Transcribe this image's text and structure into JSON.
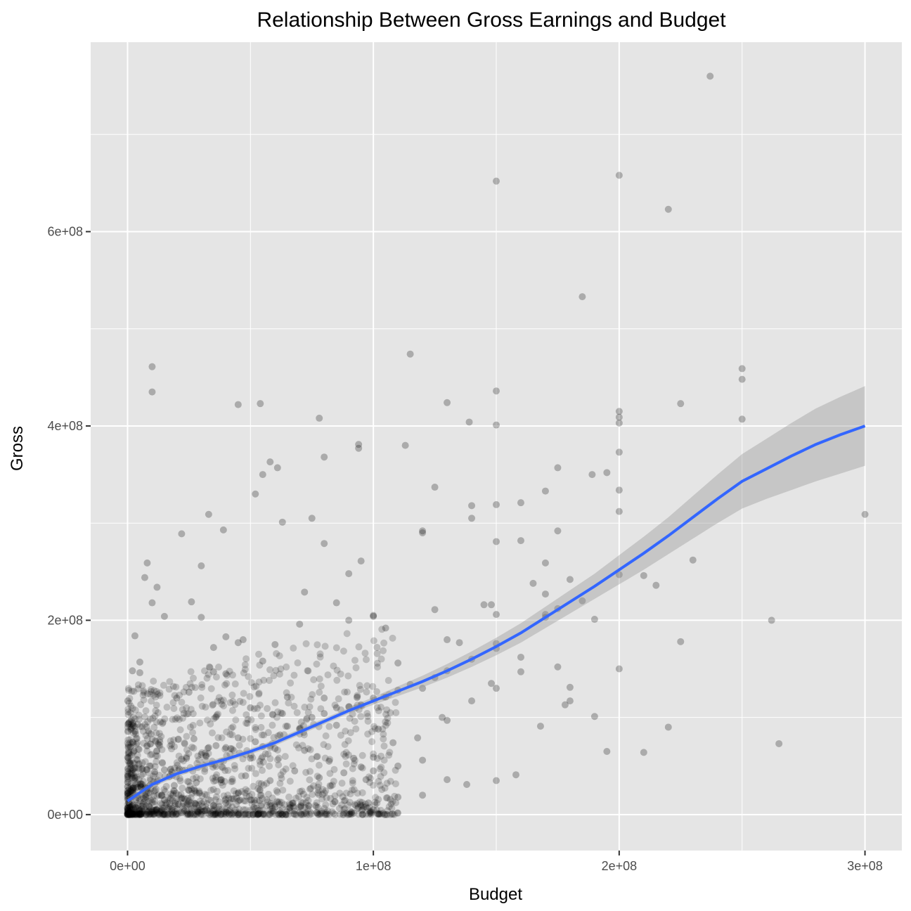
{
  "chart_data": {
    "type": "scatter",
    "title": "Relationship Between Gross Earnings and Budget",
    "xlabel": "Budget",
    "ylabel": "Gross",
    "xlim": [
      -15000000,
      315000000
    ],
    "ylim": [
      -37000000,
      795000000
    ],
    "x_ticks": [
      {
        "value": 0,
        "label": "0e+00"
      },
      {
        "value": 100000000,
        "label": "1e+08"
      },
      {
        "value": 200000000,
        "label": "2e+08"
      },
      {
        "value": 300000000,
        "label": "3e+08"
      }
    ],
    "y_ticks": [
      {
        "value": 0,
        "label": "0e+00"
      },
      {
        "value": 200000000,
        "label": "2e+08"
      },
      {
        "value": 400000000,
        "label": "4e+08"
      },
      {
        "value": 600000000,
        "label": "6e+08"
      }
    ],
    "grid": true,
    "colors": {
      "panel_background": "#e5e5e5",
      "grid": "#ffffff",
      "points": "#000000",
      "smooth_line": "#3366ff",
      "confidence_band": "#999999"
    },
    "point_alpha": 0.25,
    "points": {
      "x": [
        237000000,
        200000000,
        150000000,
        220000000,
        185000000,
        115000000,
        10000000,
        10000000,
        150000000,
        250000000,
        250000000,
        130000000,
        45000000,
        225000000,
        200000000,
        200000000,
        78000000,
        139000000,
        250000000,
        150000000,
        200000000,
        94000000,
        113000000,
        94000000,
        200000000,
        58000000,
        80000000,
        262000000,
        61000000,
        52000000,
        75000000,
        63000000,
        175000000,
        125000000,
        189000000,
        195000000,
        170000000,
        33000000,
        200000000,
        120000000,
        160000000,
        140000000,
        80000000,
        148000000,
        55000000,
        22000000,
        54000000,
        150000000,
        120000000,
        200000000,
        72000000,
        300000000,
        95000000,
        140000000,
        265000000,
        230000000,
        175000000,
        190000000,
        210000000,
        215000000,
        100000000,
        130000000,
        63000000,
        30000000,
        12000000,
        47000000,
        39000000,
        26000000,
        7000000,
        8000000,
        3000000,
        5000000,
        160000000,
        165000000,
        180000000,
        145000000,
        170000000,
        210000000,
        225000000,
        195000000,
        150000000,
        130000000,
        120000000,
        110000000,
        105000000,
        190000000,
        175000000,
        180000000,
        150000000,
        100000000,
        90000000,
        85000000,
        70000000,
        60000000,
        50000000,
        40000000,
        35000000,
        100000000,
        110000000,
        125000000,
        135000000,
        150000000,
        160000000,
        170000000,
        175000000,
        90000000,
        100000000,
        150000000,
        200000000,
        220000000,
        170000000,
        180000000,
        120000000,
        140000000,
        150000000,
        130000000,
        95000000,
        85000000,
        80000000,
        65000000,
        55000000,
        45000000,
        40000000,
        35000000,
        30000000,
        25000000,
        20000000,
        15000000,
        10000000,
        5000000,
        2000000,
        1000000,
        500000,
        100000,
        3000000,
        6000000,
        9000000,
        12000000,
        15000000,
        18000000,
        21000000,
        24000000,
        27000000,
        30000000,
        33000000,
        36000000,
        40000000,
        45000000,
        50000000,
        55000000,
        60000000,
        65000000,
        70000000,
        75000000,
        80000000,
        85000000,
        90000000,
        95000000,
        100000000,
        105000000,
        110000000,
        115000000,
        125000000,
        140000000,
        150000000,
        160000000,
        170000000,
        185000000,
        200000000,
        100000000,
        98000000,
        110000000,
        120000000,
        130000000,
        60000000,
        50000000,
        40000000,
        45000000,
        35000000,
        25000000,
        20000000,
        15000000,
        12000000,
        8000000,
        6000000,
        4000000,
        2000000,
        1000000,
        500000,
        250000,
        100000,
        50000,
        10000,
        2500000,
        5500000,
        7500000,
        11000000,
        14000000,
        17000000,
        19000000,
        22000000,
        28000000,
        32000000,
        38000000,
        42000000,
        48000000,
        52000000,
        58000000,
        62000000,
        68000000,
        72000000,
        78000000,
        82000000,
        88000000,
        92000000,
        97000000,
        102000000,
        108000000,
        118000000,
        128000000,
        138000000,
        148000000,
        158000000,
        168000000,
        178000000
      ],
      "y": [
        760000000,
        658000000,
        652000000,
        623000000,
        533000000,
        474000000,
        461000000,
        435000000,
        436000000,
        459000000,
        448000000,
        424000000,
        422000000,
        423000000,
        415000000,
        409000000,
        408000000,
        404000000,
        407000000,
        401000000,
        403000000,
        381000000,
        380000000,
        377000000,
        373000000,
        363000000,
        368000000,
        200000000,
        357000000,
        330000000,
        305000000,
        301000000,
        357000000,
        337000000,
        350000000,
        352000000,
        333000000,
        309000000,
        334000000,
        290000000,
        321000000,
        318000000,
        279000000,
        216000000,
        350000000,
        289000000,
        423000000,
        319000000,
        292000000,
        312000000,
        229000000,
        309000000,
        261000000,
        305000000,
        73000000,
        262000000,
        292000000,
        101000000,
        246000000,
        236000000,
        59000000,
        180000000,
        104000000,
        256000000,
        234000000,
        180000000,
        293000000,
        219000000,
        244000000,
        259000000,
        184000000,
        157000000,
        282000000,
        238000000,
        242000000,
        216000000,
        259000000,
        64000000,
        178000000,
        65000000,
        206000000,
        97000000,
        130000000,
        50000000,
        192000000,
        201000000,
        152000000,
        131000000,
        130000000,
        204000000,
        248000000,
        218000000,
        196000000,
        175000000,
        110000000,
        145000000,
        172000000,
        205000000,
        156000000,
        211000000,
        177000000,
        281000000,
        147000000,
        206000000,
        212000000,
        200000000,
        45000000,
        35000000,
        150000000,
        90000000,
        227000000,
        117000000,
        56000000,
        117000000,
        176000000,
        148000000,
        49000000,
        92000000,
        120000000,
        121000000,
        158000000,
        177000000,
        183000000,
        147000000,
        203000000,
        126000000,
        120000000,
        204000000,
        218000000,
        146000000,
        148000000,
        47000000,
        94000000,
        117000000,
        38000000,
        31000000,
        50000000,
        34000000,
        46000000,
        44000000,
        47000000,
        58000000,
        78000000,
        62000000,
        69000000,
        71000000,
        69000000,
        79000000,
        58000000,
        70000000,
        68000000,
        91000000,
        88000000,
        100000000,
        104000000,
        110000000,
        111000000,
        113000000,
        120000000,
        121000000,
        128000000,
        134000000,
        141000000,
        160000000,
        171000000,
        162000000,
        203000000,
        220000000,
        247000000,
        5000000,
        12000000,
        18000000,
        20000000,
        36000000,
        8000000,
        15000000,
        12000000,
        22000000,
        9000000,
        25000000,
        6000000,
        15000000,
        2000000,
        27000000,
        3000000,
        32000000,
        1000000,
        8000000,
        12000000,
        16000000,
        4000000,
        22000000,
        2000000,
        6000000,
        28000000,
        18000000,
        44000000,
        20000000,
        39000000,
        30000000,
        57000000,
        33000000,
        60000000,
        36000000,
        68000000,
        40000000,
        75000000,
        35000000,
        82000000,
        45000000,
        66000000,
        38000000,
        55000000,
        43000000,
        58000000,
        36000000,
        88000000,
        74000000,
        79000000,
        100000000,
        31000000,
        135000000,
        41000000,
        91000000,
        113000000
      ]
    },
    "dense_cluster": {
      "x_range": [
        0,
        110000000
      ],
      "y_range": [
        0,
        200000000
      ]
    },
    "smooth": {
      "x": [
        0,
        10000000,
        20000000,
        30000000,
        40000000,
        50000000,
        60000000,
        70000000,
        80000000,
        90000000,
        100000000,
        110000000,
        120000000,
        130000000,
        140000000,
        150000000,
        160000000,
        170000000,
        180000000,
        190000000,
        200000000,
        210000000,
        220000000,
        230000000,
        240000000,
        250000000,
        260000000,
        270000000,
        280000000,
        290000000,
        300000000
      ],
      "y": [
        14000000,
        31000000,
        42000000,
        50000000,
        57000000,
        65000000,
        74000000,
        85000000,
        96000000,
        107000000,
        117000000,
        127000000,
        137000000,
        148000000,
        160000000,
        173000000,
        187000000,
        203000000,
        219000000,
        235000000,
        252000000,
        269000000,
        287000000,
        306000000,
        325000000,
        343000000,
        356000000,
        369000000,
        381000000,
        391000000,
        400000000
      ],
      "lower": [
        10000000,
        28000000,
        39000000,
        47000000,
        54000000,
        62000000,
        71000000,
        82000000,
        93000000,
        104000000,
        113000000,
        122000000,
        131000000,
        141000000,
        152000000,
        164000000,
        177000000,
        192000000,
        207000000,
        222000000,
        237000000,
        252000000,
        268000000,
        284000000,
        300000000,
        315000000,
        325000000,
        334000000,
        343000000,
        351000000,
        359000000
      ],
      "upper": [
        18000000,
        34000000,
        45000000,
        53000000,
        60000000,
        68000000,
        77000000,
        88000000,
        99000000,
        110000000,
        121000000,
        132000000,
        143000000,
        155000000,
        168000000,
        182000000,
        197000000,
        214000000,
        231000000,
        248000000,
        267000000,
        286000000,
        306000000,
        328000000,
        350000000,
        371000000,
        387000000,
        403000000,
        418000000,
        430000000,
        441000000
      ]
    }
  }
}
